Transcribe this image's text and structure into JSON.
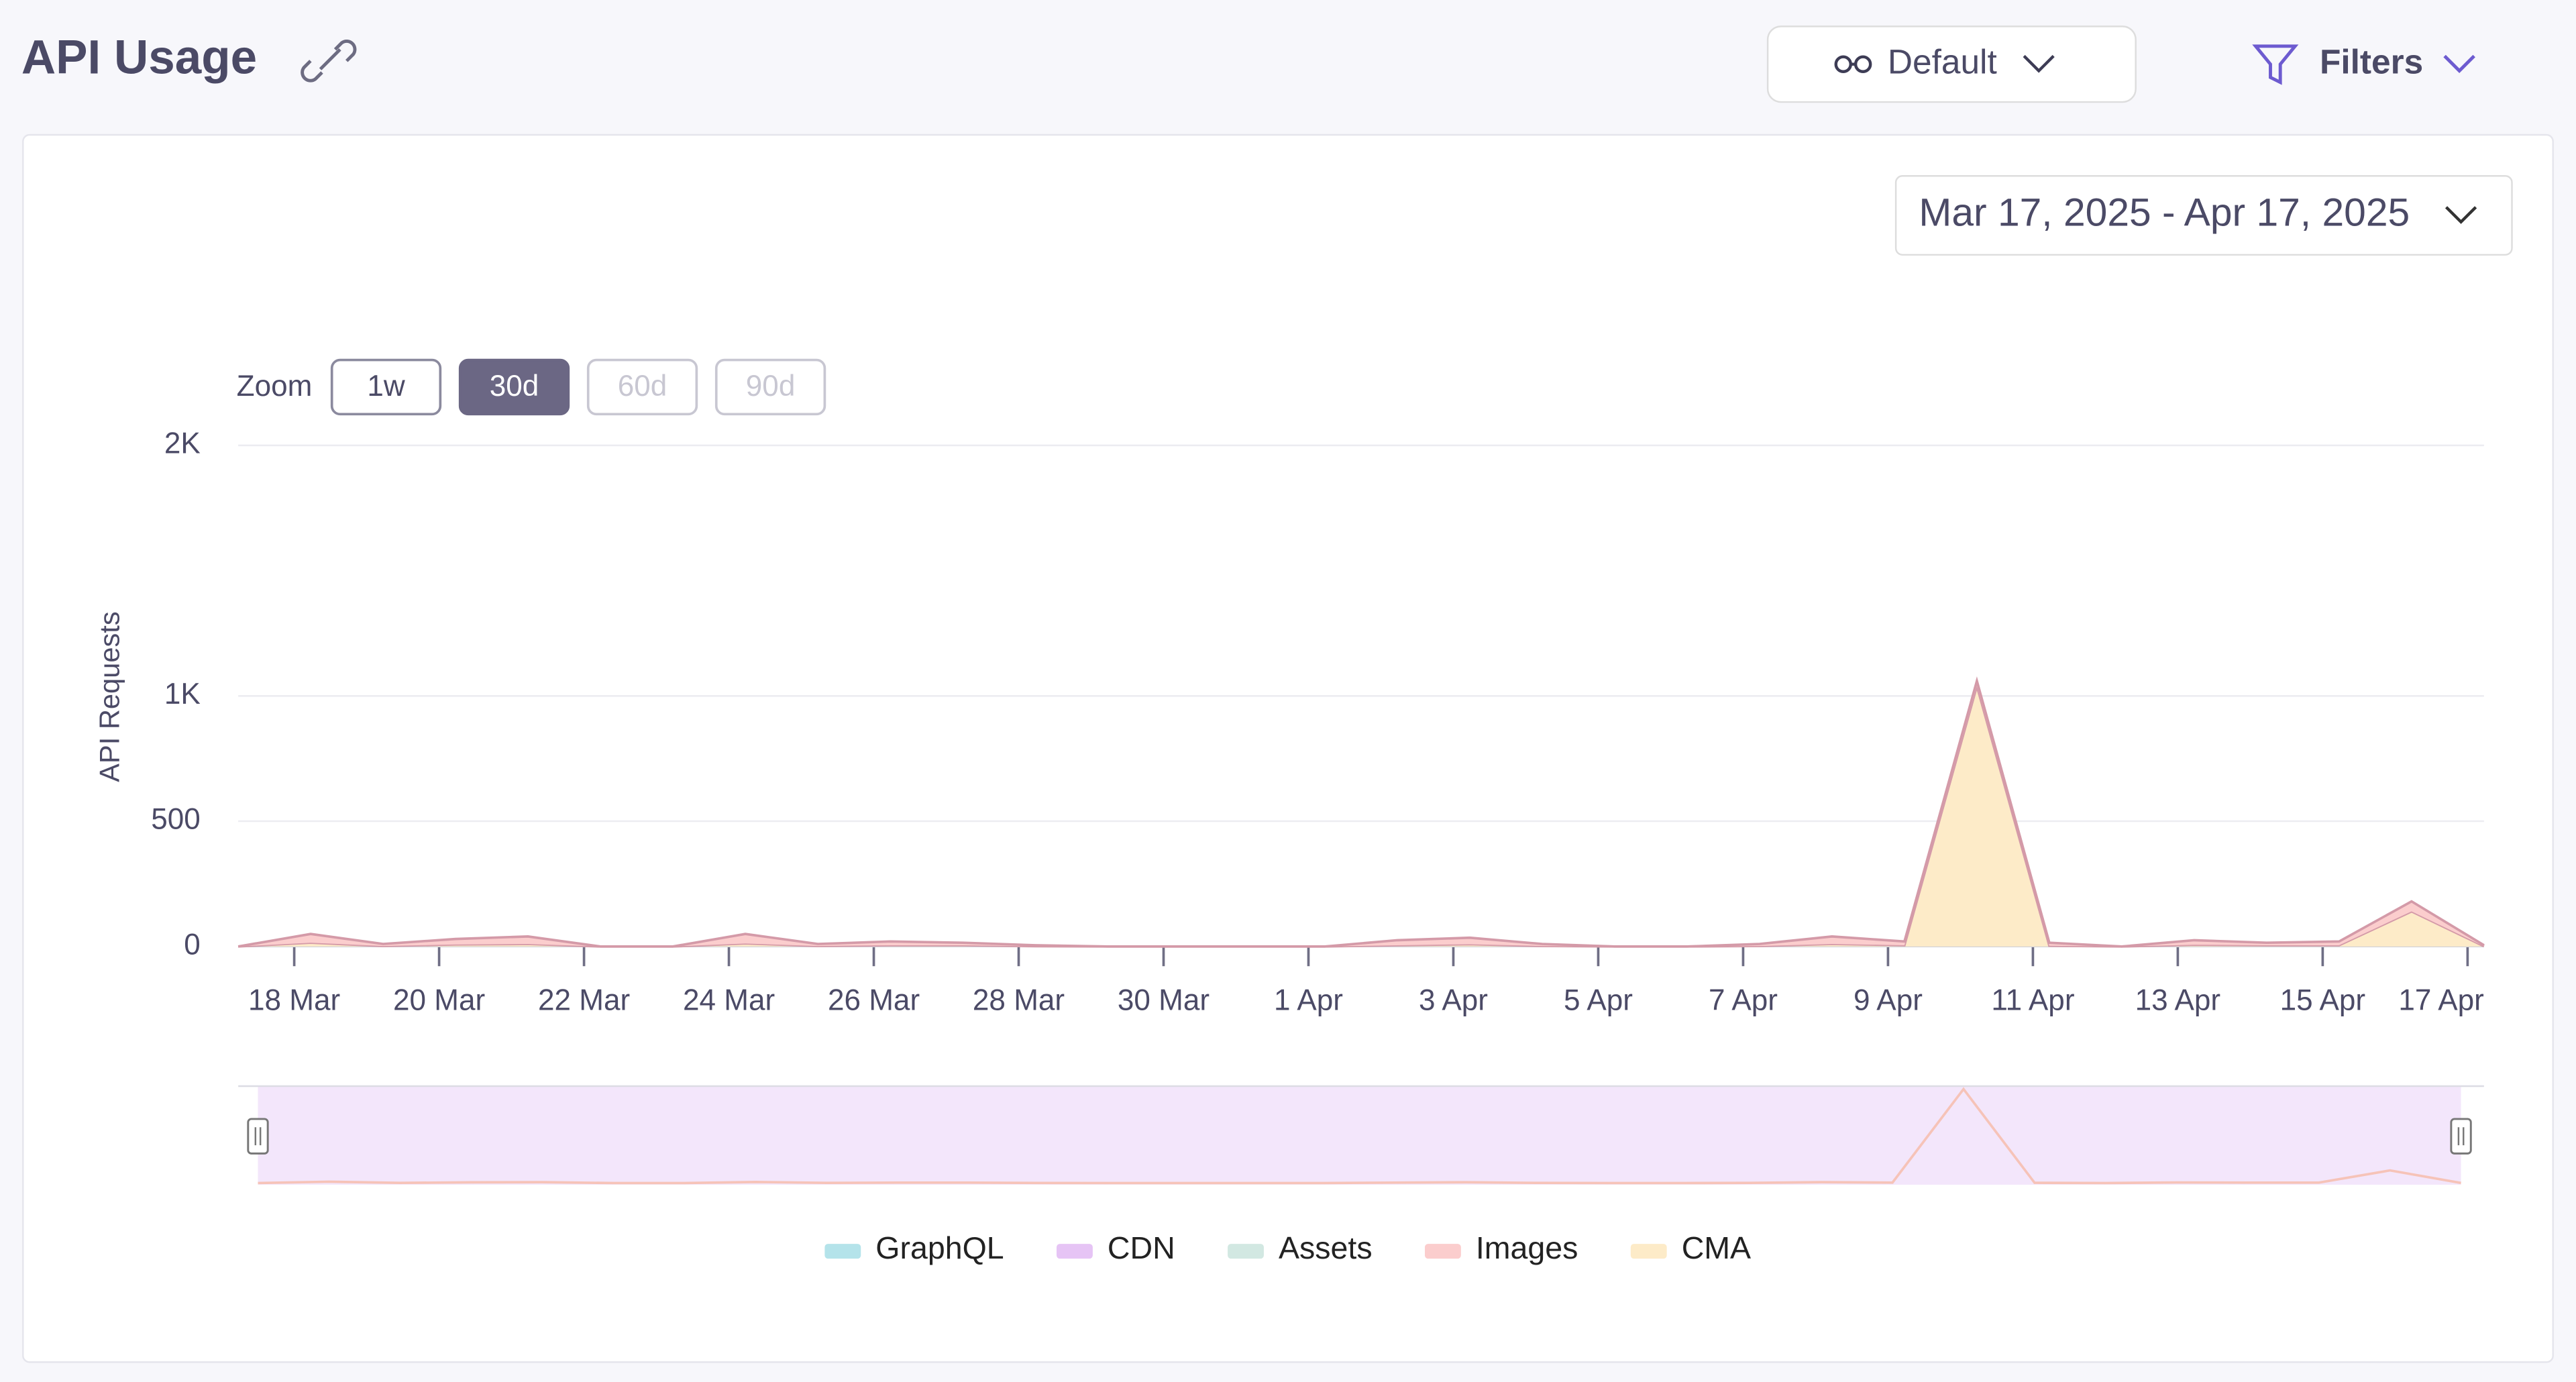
{
  "header": {
    "title": "API Usage",
    "view": "Default",
    "filters": "Filters"
  },
  "date_range": "Mar 17, 2025 - Apr 17, 2025",
  "zoom": {
    "label": "Zoom",
    "buttons": [
      "1w",
      "30d",
      "60d",
      "90d"
    ],
    "active": "30d"
  },
  "chart_data": {
    "type": "stacked-area",
    "ylabel": "API Requests",
    "categories": [
      null,
      "18 Mar",
      null,
      "20 Mar",
      null,
      "22 Mar",
      null,
      "24 Mar",
      null,
      "26 Mar",
      null,
      "28 Mar",
      null,
      "30 Mar",
      null,
      "1 Apr",
      null,
      "3 Apr",
      null,
      "5 Apr",
      null,
      "7 Apr",
      null,
      "9 Apr",
      null,
      "11 Apr",
      null,
      "13 Apr",
      null,
      "15 Apr",
      null,
      "17 Apr"
    ],
    "ylim": [
      0,
      2000
    ],
    "yticks": [
      0,
      500,
      {
        "value": 1000,
        "label": "1K"
      },
      {
        "value": 2000,
        "label": "2K"
      }
    ],
    "grid": true,
    "legend": "bottom",
    "series": [
      {
        "name": "GraphQL",
        "color": "#b4e3ea",
        "values": [
          0,
          0,
          0,
          0,
          0,
          0,
          0,
          0,
          0,
          0,
          0,
          0,
          0,
          0,
          0,
          0,
          0,
          0,
          0,
          0,
          0,
          0,
          0,
          0,
          0,
          0,
          0,
          0,
          0,
          0,
          0,
          0
        ]
      },
      {
        "name": "CDN",
        "color": "#e6c4f5",
        "values": [
          0,
          0,
          0,
          0,
          0,
          0,
          0,
          0,
          0,
          0,
          0,
          0,
          0,
          0,
          0,
          0,
          0,
          0,
          0,
          0,
          0,
          0,
          0,
          0,
          0,
          0,
          0,
          0,
          0,
          0,
          0,
          0
        ]
      },
      {
        "name": "Assets",
        "color": "#d2e8e2",
        "values": [
          0,
          0,
          0,
          0,
          0,
          0,
          0,
          0,
          0,
          0,
          0,
          0,
          0,
          0,
          0,
          0,
          0,
          0,
          0,
          0,
          0,
          0,
          0,
          0,
          0,
          0,
          0,
          0,
          0,
          0,
          0,
          0
        ]
      },
      {
        "name": "Images",
        "color": "#fbcdcd",
        "values": [
          0,
          35,
          8,
          22,
          30,
          0,
          0,
          38,
          8,
          15,
          10,
          4,
          0,
          0,
          0,
          0,
          20,
          26,
          8,
          0,
          0,
          8,
          30,
          15,
          20,
          12,
          0,
          18,
          10,
          15,
          40,
          4
        ]
      },
      {
        "name": "CMA",
        "color": "#fdebc8",
        "values": [
          0,
          15,
          2,
          8,
          10,
          0,
          0,
          12,
          2,
          5,
          5,
          1,
          0,
          0,
          0,
          0,
          5,
          9,
          2,
          0,
          0,
          2,
          10,
          5,
          1040,
          3,
          0,
          7,
          5,
          5,
          140,
          1
        ]
      }
    ]
  }
}
